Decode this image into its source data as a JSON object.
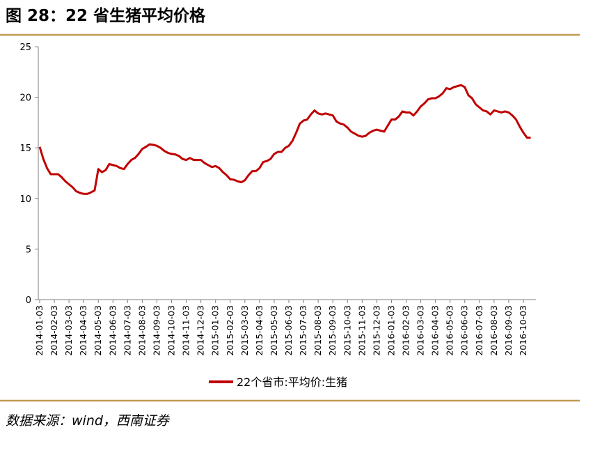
{
  "header": {
    "title": "图 28：22 省生猪平均价格"
  },
  "chart_data": {
    "type": "line",
    "categories": [
      "2014-01-03",
      null,
      null,
      null,
      "2014-02-03",
      null,
      null,
      null,
      "2014-03-03",
      null,
      null,
      null,
      "2014-04-03",
      null,
      null,
      null,
      "2014-05-03",
      null,
      null,
      null,
      "2014-06-03",
      null,
      null,
      null,
      "2014-07-03",
      null,
      null,
      null,
      "2014-08-03",
      null,
      null,
      null,
      "2014-09-03",
      null,
      null,
      null,
      "2014-10-03",
      null,
      null,
      null,
      "2014-11-03",
      null,
      null,
      null,
      "2014-12-03",
      null,
      null,
      null,
      "2015-01-03",
      null,
      null,
      null,
      "2015-02-03",
      null,
      null,
      null,
      "2015-03-03",
      null,
      null,
      null,
      "2015-04-03",
      null,
      null,
      null,
      "2015-05-03",
      null,
      null,
      null,
      "2015-06-03",
      null,
      null,
      null,
      "2015-07-03",
      null,
      null,
      null,
      "2015-08-03",
      null,
      null,
      null,
      "2015-09-03",
      null,
      null,
      null,
      "2015-10-03",
      null,
      null,
      null,
      "2015-11-03",
      null,
      null,
      null,
      "2015-12-03",
      null,
      null,
      null,
      "2016-01-03",
      null,
      null,
      null,
      "2016-02-03",
      null,
      null,
      null,
      "2016-03-03",
      null,
      null,
      null,
      "2016-04-03",
      null,
      null,
      null,
      "2016-05-03",
      null,
      null,
      null,
      "2016-06-03",
      null,
      null,
      null,
      "2016-07-03",
      null,
      null,
      null,
      "2016-08-03",
      null,
      null,
      null,
      "2016-09-03",
      null,
      null,
      null,
      "2016-10-03",
      null,
      null
    ],
    "series": [
      {
        "name": "22个省市:平均价:生猪",
        "color": "#c00000",
        "values": [
          15.1,
          13.9,
          13.0,
          12.4,
          12.4,
          12.4,
          12.1,
          11.7,
          11.4,
          11.1,
          10.7,
          10.55,
          10.45,
          10.45,
          10.6,
          10.8,
          12.9,
          12.6,
          12.8,
          13.4,
          13.3,
          13.2,
          13.0,
          12.9,
          13.4,
          13.8,
          14.0,
          14.4,
          14.9,
          15.1,
          15.35,
          15.3,
          15.2,
          15.0,
          14.7,
          14.5,
          14.4,
          14.35,
          14.2,
          13.9,
          13.8,
          14.0,
          13.8,
          13.8,
          13.8,
          13.5,
          13.3,
          13.1,
          13.2,
          13.0,
          12.6,
          12.3,
          11.9,
          11.85,
          11.7,
          11.6,
          11.8,
          12.3,
          12.7,
          12.7,
          13.0,
          13.6,
          13.7,
          13.9,
          14.4,
          14.6,
          14.6,
          15.0,
          15.2,
          15.7,
          16.5,
          17.4,
          17.7,
          17.8,
          18.3,
          18.7,
          18.4,
          18.3,
          18.4,
          18.3,
          18.2,
          17.6,
          17.4,
          17.3,
          17.0,
          16.6,
          16.4,
          16.2,
          16.1,
          16.2,
          16.5,
          16.7,
          16.8,
          16.7,
          16.6,
          17.2,
          17.8,
          17.8,
          18.1,
          18.6,
          18.5,
          18.5,
          18.2,
          18.6,
          19.1,
          19.4,
          19.8,
          19.9,
          19.9,
          20.1,
          20.4,
          20.9,
          20.8,
          21.0,
          21.1,
          21.2,
          21.0,
          20.2,
          19.9,
          19.3,
          19.0,
          18.7,
          18.6,
          18.3,
          18.7,
          18.6,
          18.5,
          18.6,
          18.5,
          18.2,
          17.8,
          17.1,
          16.5,
          16.0,
          16.0
        ]
      }
    ],
    "ylim": [
      0,
      25
    ],
    "yticks": [
      0,
      5,
      10,
      15,
      20,
      25
    ],
    "grid": false
  },
  "footer": {
    "source": "数据来源：wind，西南证券"
  }
}
